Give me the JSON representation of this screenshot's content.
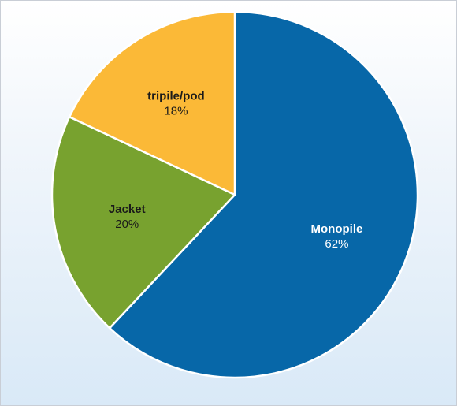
{
  "chart_data": {
    "type": "pie",
    "title": "",
    "slices": [
      {
        "label": "Monopile",
        "value": 62,
        "display": "62%",
        "color": "#0767a8",
        "text_color": "#ffffff"
      },
      {
        "label": "Jacket",
        "value": 20,
        "display": "20%",
        "color": "#78a22f",
        "text_color": "#1a1a1a"
      },
      {
        "label": "tripile/pod",
        "value": 18,
        "display": "18%",
        "color": "#fbb937",
        "text_color": "#1a1a1a"
      }
    ],
    "start_position": "top",
    "direction": "clockwise",
    "legend": "none",
    "data_labels": "inside"
  }
}
